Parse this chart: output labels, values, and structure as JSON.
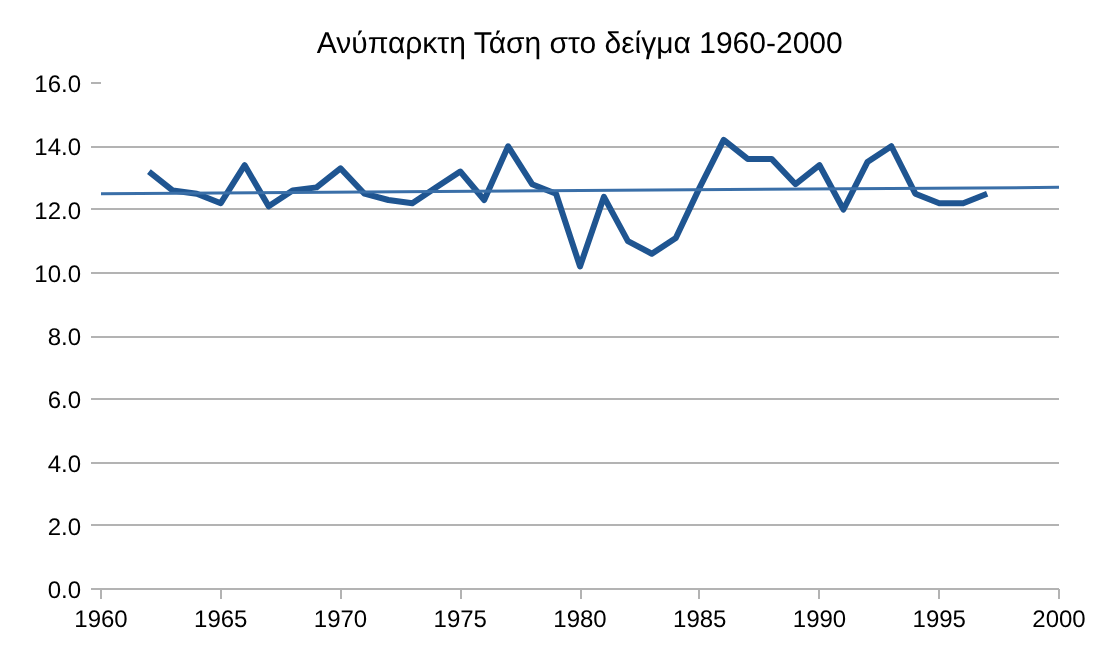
{
  "chart_data": {
    "type": "line",
    "title": "Ανύπαρκτη Τάση στο δείγμα 1960-2000",
    "xlim": [
      1960,
      2000
    ],
    "xticks": [
      1960,
      1965,
      1970,
      1975,
      1980,
      1985,
      1990,
      1995,
      2000
    ],
    "ylim": [
      0,
      16
    ],
    "yticks": [
      {
        "value": 0,
        "label": "0.0"
      },
      {
        "value": 2,
        "label": "2.0"
      },
      {
        "value": 4,
        "label": "4.0"
      },
      {
        "value": 6,
        "label": "6.0"
      },
      {
        "value": 8,
        "label": "8.0"
      },
      {
        "value": 10,
        "label": "10.0"
      },
      {
        "value": 12,
        "label": "12.0"
      },
      {
        "value": 14,
        "label": "14.0"
      },
      {
        "value": 16,
        "label": "16.0"
      }
    ],
    "grid": "y",
    "series": [
      {
        "color": "#1f5591",
        "x": [
          1962,
          1963,
          1964,
          1965,
          1966,
          1967,
          1968,
          1969,
          1970,
          1971,
          1972,
          1973,
          1974,
          1975,
          1976,
          1977,
          1978,
          1979,
          1980,
          1981,
          1982,
          1983,
          1984,
          1985,
          1986,
          1987,
          1988,
          1989,
          1990,
          1991,
          1992,
          1993,
          1994,
          1995,
          1996,
          1997
        ],
        "values": [
          13.2,
          12.6,
          12.5,
          12.2,
          13.4,
          12.1,
          12.6,
          12.7,
          13.3,
          12.5,
          12.3,
          12.2,
          12.7,
          13.2,
          12.3,
          14.0,
          12.8,
          12.5,
          10.2,
          12.4,
          11.0,
          10.6,
          11.1,
          12.7,
          14.2,
          13.6,
          13.6,
          12.8,
          13.4,
          12.0,
          13.5,
          14.0,
          12.5,
          12.2,
          12.2,
          12.5
        ]
      },
      {
        "type": "line",
        "color": "#3a6fa8",
        "x": [
          1960,
          2000
        ],
        "values": [
          12.5,
          12.7
        ]
      }
    ]
  }
}
